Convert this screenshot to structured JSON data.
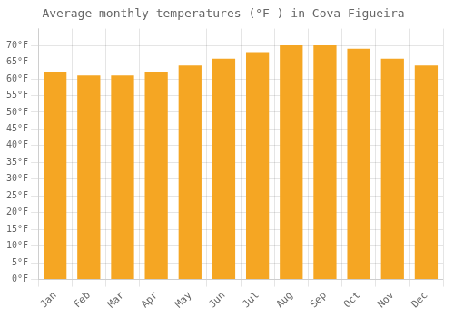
{
  "chart_data": {
    "type": "bar",
    "title": "Average monthly temperatures (°F ) in Cova Figueira",
    "categories": [
      "Jan",
      "Feb",
      "Mar",
      "Apr",
      "May",
      "Jun",
      "Jul",
      "Aug",
      "Sep",
      "Oct",
      "Nov",
      "Dec"
    ],
    "values": [
      62,
      61,
      61,
      62,
      64,
      66,
      68,
      70,
      70,
      69,
      66,
      64
    ],
    "color": "#F5A623",
    "ylim": [
      0,
      75
    ],
    "yticks": [
      {
        "value": 0,
        "label": "0°F"
      },
      {
        "value": 5,
        "label": "5°F"
      },
      {
        "value": 10,
        "label": "10°F"
      },
      {
        "value": 15,
        "label": "15°F"
      },
      {
        "value": 20,
        "label": "20°F"
      },
      {
        "value": 25,
        "label": "25°F"
      },
      {
        "value": 30,
        "label": "30°F"
      },
      {
        "value": 35,
        "label": "35°F"
      },
      {
        "value": 40,
        "label": "40°F"
      },
      {
        "value": 45,
        "label": "45°F"
      },
      {
        "value": 50,
        "label": "50°F"
      },
      {
        "value": 55,
        "label": "55°F"
      },
      {
        "value": 60,
        "label": "60°F"
      },
      {
        "value": 65,
        "label": "65°F"
      },
      {
        "value": 70,
        "label": "70°F"
      }
    ],
    "grid": true
  }
}
